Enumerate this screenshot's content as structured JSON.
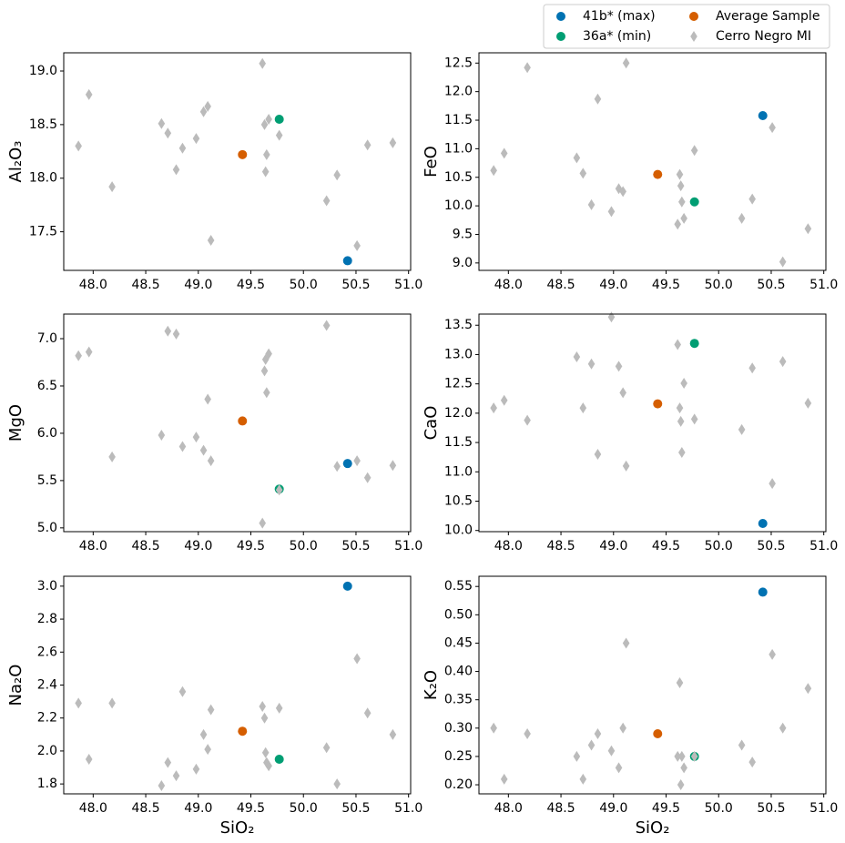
{
  "chart_data": [
    {
      "type": "scatter",
      "ylabel": "Al₂O₃",
      "xlim": [
        47.72,
        51.02
      ],
      "xticks": [
        {
          "value": 48,
          "label": "48.0"
        },
        48.5,
        {
          "value": 49,
          "label": "49.0"
        },
        49.5,
        {
          "value": 50,
          "label": "50.0"
        },
        50.5,
        {
          "value": 51,
          "label": "51.0"
        }
      ],
      "ylim": [
        17.14,
        19.17
      ],
      "yticks": [
        17.5,
        {
          "value": 18,
          "label": "18.0"
        },
        18.5,
        {
          "value": 19,
          "label": "19.0"
        }
      ],
      "series": [
        {
          "name": "41b* (max)",
          "color": "#0072b2",
          "marker": "o",
          "x": [
            50.42
          ],
          "values": [
            17.23
          ]
        },
        {
          "name": "36a* (min)",
          "color": "#009e73",
          "marker": "o",
          "x": [
            49.77
          ],
          "values": [
            18.55
          ]
        },
        {
          "name": "Average Sample",
          "color": "#d55e00",
          "marker": "o",
          "x": [
            49.42
          ],
          "values": [
            18.22
          ]
        },
        {
          "name": "Cerro Negro MI",
          "color": "#bbbbbb",
          "marker": "d",
          "x": [
            47.86,
            47.96,
            48.18,
            48.65,
            48.71,
            48.79,
            48.85,
            48.98,
            49.05,
            49.09,
            49.12,
            49.61,
            49.63,
            49.64,
            49.65,
            49.67,
            49.77,
            50.22,
            50.32,
            50.51,
            50.61,
            50.85
          ],
          "values": [
            18.3,
            18.78,
            17.92,
            18.51,
            18.42,
            18.08,
            18.28,
            18.37,
            18.62,
            18.67,
            17.42,
            19.07,
            18.5,
            18.06,
            18.22,
            18.55,
            18.4,
            17.79,
            18.03,
            17.37,
            18.31,
            18.33
          ]
        }
      ]
    },
    {
      "type": "scatter",
      "ylabel": "FeO",
      "xlim": [
        47.72,
        51.02
      ],
      "xticks": [
        {
          "value": 48,
          "label": "48.0"
        },
        48.5,
        {
          "value": 49,
          "label": "49.0"
        },
        49.5,
        {
          "value": 50,
          "label": "50.0"
        },
        50.5,
        {
          "value": 51,
          "label": "51.0"
        }
      ],
      "ylim": [
        8.87,
        12.68
      ],
      "yticks": [
        {
          "value": 9,
          "label": "9.0"
        },
        9.5,
        {
          "value": 10,
          "label": "10.0"
        },
        10.5,
        {
          "value": 11,
          "label": "11.0"
        },
        11.5,
        {
          "value": 12,
          "label": "12.0"
        },
        12.5
      ],
      "series": [
        {
          "name": "41b* (max)",
          "color": "#0072b2",
          "marker": "o",
          "x": [
            50.42
          ],
          "values": [
            11.58
          ]
        },
        {
          "name": "36a* (min)",
          "color": "#009e73",
          "marker": "o",
          "x": [
            49.77
          ],
          "values": [
            10.07
          ]
        },
        {
          "name": "Average Sample",
          "color": "#d55e00",
          "marker": "o",
          "x": [
            49.42
          ],
          "values": [
            10.55
          ]
        },
        {
          "name": "Cerro Negro MI",
          "color": "#bbbbbb",
          "marker": "d",
          "x": [
            47.86,
            47.96,
            48.18,
            48.65,
            48.71,
            48.79,
            48.85,
            48.98,
            49.05,
            49.09,
            49.12,
            49.61,
            49.63,
            49.64,
            49.65,
            49.67,
            49.77,
            50.22,
            50.32,
            50.51,
            50.61,
            50.85
          ],
          "values": [
            10.62,
            10.92,
            12.42,
            10.84,
            10.57,
            10.02,
            11.87,
            9.9,
            10.3,
            10.25,
            12.5,
            9.68,
            10.55,
            10.35,
            10.07,
            9.78,
            10.97,
            9.78,
            10.12,
            11.37,
            9.02,
            9.6
          ]
        }
      ]
    },
    {
      "type": "scatter",
      "ylabel": "MgO",
      "xlim": [
        47.72,
        51.02
      ],
      "xticks": [
        {
          "value": 48,
          "label": "48.0"
        },
        48.5,
        {
          "value": 49,
          "label": "49.0"
        },
        49.5,
        {
          "value": 50,
          "label": "50.0"
        },
        50.5,
        {
          "value": 51,
          "label": "51.0"
        }
      ],
      "ylim": [
        4.96,
        7.26
      ],
      "yticks": [
        {
          "value": 5,
          "label": "5.0"
        },
        5.5,
        {
          "value": 6,
          "label": "6.0"
        },
        6.5,
        {
          "value": 7,
          "label": "7.0"
        }
      ],
      "series": [
        {
          "name": "41b* (max)",
          "color": "#0072b2",
          "marker": "o",
          "x": [
            50.42
          ],
          "values": [
            5.68
          ]
        },
        {
          "name": "36a* (min)",
          "color": "#009e73",
          "marker": "o",
          "x": [
            49.77
          ],
          "values": [
            5.41
          ]
        },
        {
          "name": "Average Sample",
          "color": "#d55e00",
          "marker": "o",
          "x": [
            49.42
          ],
          "values": [
            6.13
          ]
        },
        {
          "name": "Cerro Negro MI",
          "color": "#bbbbbb",
          "marker": "d",
          "x": [
            47.86,
            47.96,
            48.18,
            48.65,
            48.71,
            48.79,
            48.85,
            48.98,
            49.05,
            49.09,
            49.12,
            49.61,
            49.63,
            49.64,
            49.65,
            49.67,
            49.77,
            50.22,
            50.32,
            50.51,
            50.61,
            50.85
          ],
          "values": [
            6.82,
            6.86,
            5.75,
            5.98,
            7.08,
            7.05,
            5.86,
            5.96,
            5.82,
            6.36,
            5.71,
            5.05,
            6.66,
            6.78,
            6.43,
            6.84,
            5.4,
            7.14,
            5.65,
            5.71,
            5.53,
            5.66
          ]
        }
      ]
    },
    {
      "type": "scatter",
      "ylabel": "CaO",
      "xlim": [
        47.72,
        51.02
      ],
      "xticks": [
        {
          "value": 48,
          "label": "48.0"
        },
        48.5,
        {
          "value": 49,
          "label": "49.0"
        },
        49.5,
        {
          "value": 50,
          "label": "50.0"
        },
        50.5,
        {
          "value": 51,
          "label": "51.0"
        }
      ],
      "ylim": [
        9.98,
        13.69
      ],
      "yticks": [
        {
          "value": 10,
          "label": "10.0"
        },
        10.5,
        {
          "value": 11,
          "label": "11.0"
        },
        11.5,
        {
          "value": 12,
          "label": "12.0"
        },
        12.5,
        {
          "value": 13,
          "label": "13.0"
        },
        13.5
      ],
      "series": [
        {
          "name": "41b* (max)",
          "color": "#0072b2",
          "marker": "o",
          "x": [
            50.42
          ],
          "values": [
            10.12
          ]
        },
        {
          "name": "36a* (min)",
          "color": "#009e73",
          "marker": "o",
          "x": [
            49.77
          ],
          "values": [
            13.19
          ]
        },
        {
          "name": "Average Sample",
          "color": "#d55e00",
          "marker": "o",
          "x": [
            49.42
          ],
          "values": [
            12.16
          ]
        },
        {
          "name": "Cerro Negro MI",
          "color": "#bbbbbb",
          "marker": "d",
          "x": [
            47.86,
            47.96,
            48.18,
            48.65,
            48.71,
            48.79,
            48.85,
            48.98,
            49.05,
            49.09,
            49.12,
            49.61,
            49.63,
            49.64,
            49.65,
            49.67,
            49.77,
            50.22,
            50.32,
            50.51,
            50.61,
            50.85
          ],
          "values": [
            12.09,
            12.22,
            11.88,
            12.96,
            12.09,
            12.84,
            11.3,
            13.64,
            12.8,
            12.35,
            11.1,
            13.17,
            12.09,
            11.86,
            11.33,
            12.51,
            11.9,
            11.72,
            12.77,
            10.8,
            12.88,
            12.17
          ]
        }
      ]
    },
    {
      "type": "scatter",
      "ylabel": "Na₂O",
      "xlabel": "SiO₂",
      "xlim": [
        47.72,
        51.02
      ],
      "xticks": [
        {
          "value": 48,
          "label": "48.0"
        },
        48.5,
        {
          "value": 49,
          "label": "49.0"
        },
        49.5,
        {
          "value": 50,
          "label": "50.0"
        },
        50.5,
        {
          "value": 51,
          "label": "51.0"
        }
      ],
      "ylim": [
        1.74,
        3.06
      ],
      "yticks": [
        1.8,
        {
          "value": 2,
          "label": "2.0"
        },
        2.2,
        2.4,
        2.6,
        2.8,
        {
          "value": 3,
          "label": "3.0"
        }
      ],
      "series": [
        {
          "name": "41b* (max)",
          "color": "#0072b2",
          "marker": "o",
          "x": [
            50.42
          ],
          "values": [
            3.0
          ]
        },
        {
          "name": "36a* (min)",
          "color": "#009e73",
          "marker": "o",
          "x": [
            49.77
          ],
          "values": [
            1.95
          ]
        },
        {
          "name": "Average Sample",
          "color": "#d55e00",
          "marker": "o",
          "x": [
            49.42
          ],
          "values": [
            2.12
          ]
        },
        {
          "name": "Cerro Negro MI",
          "color": "#bbbbbb",
          "marker": "d",
          "x": [
            47.86,
            47.96,
            48.18,
            48.65,
            48.71,
            48.79,
            48.85,
            48.98,
            49.05,
            49.09,
            49.12,
            49.61,
            49.63,
            49.64,
            49.65,
            49.67,
            49.77,
            50.22,
            50.32,
            50.51,
            50.61,
            50.85
          ],
          "values": [
            2.29,
            1.95,
            2.29,
            1.79,
            1.93,
            1.85,
            2.36,
            1.89,
            2.1,
            2.01,
            2.25,
            2.27,
            2.2,
            1.99,
            1.93,
            1.91,
            2.26,
            2.02,
            1.8,
            2.56,
            2.23,
            2.1
          ]
        }
      ]
    },
    {
      "type": "scatter",
      "ylabel": "K₂O",
      "xlabel": "SiO₂",
      "xlim": [
        47.72,
        51.02
      ],
      "xticks": [
        {
          "value": 48,
          "label": "48.0"
        },
        48.5,
        {
          "value": 49,
          "label": "49.0"
        },
        49.5,
        {
          "value": 50,
          "label": "50.0"
        },
        50.5,
        {
          "value": 51,
          "label": "51.0"
        }
      ],
      "ylim": [
        0.184,
        0.568
      ],
      "yticks": [
        {
          "value": 0.2,
          "label": "0.20"
        },
        0.25,
        {
          "value": 0.3,
          "label": "0.30"
        },
        0.35,
        {
          "value": 0.4,
          "label": "0.40"
        },
        0.45,
        {
          "value": 0.5,
          "label": "0.50"
        },
        0.55
      ],
      "series": [
        {
          "name": "41b* (max)",
          "color": "#0072b2",
          "marker": "o",
          "x": [
            50.42
          ],
          "values": [
            0.54
          ]
        },
        {
          "name": "36a* (min)",
          "color": "#009e73",
          "marker": "o",
          "x": [
            49.77
          ],
          "values": [
            0.25
          ]
        },
        {
          "name": "Average Sample",
          "color": "#d55e00",
          "marker": "o",
          "x": [
            49.42
          ],
          "values": [
            0.29
          ]
        },
        {
          "name": "Cerro Negro MI",
          "color": "#bbbbbb",
          "marker": "d",
          "x": [
            47.86,
            47.96,
            48.18,
            48.65,
            48.71,
            48.79,
            48.85,
            48.98,
            49.05,
            49.09,
            49.12,
            49.61,
            49.63,
            49.64,
            49.65,
            49.67,
            49.77,
            50.22,
            50.32,
            50.51,
            50.61,
            50.85
          ],
          "values": [
            0.3,
            0.21,
            0.29,
            0.25,
            0.21,
            0.27,
            0.29,
            0.26,
            0.23,
            0.3,
            0.45,
            0.25,
            0.38,
            0.2,
            0.25,
            0.23,
            0.25,
            0.27,
            0.24,
            0.43,
            0.3,
            0.37
          ]
        }
      ]
    }
  ]
}
